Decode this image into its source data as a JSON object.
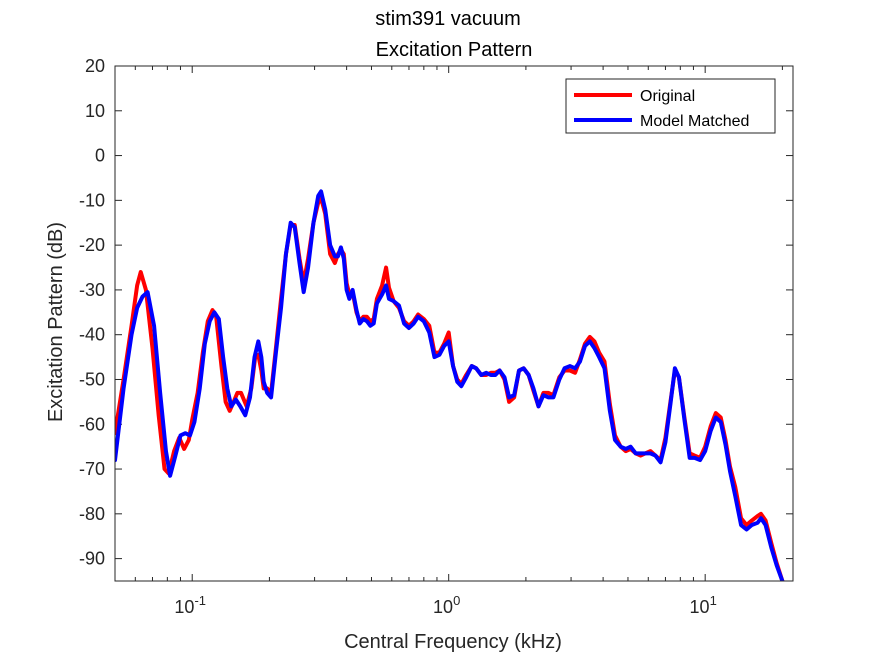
{
  "chart_data": {
    "type": "line",
    "title": "stim391 vacuum",
    "subtitle": "Excitation Pattern",
    "xlabel": "Central Frequency (kHz)",
    "ylabel": "Excitation Pattern (dB)",
    "xscale": "log",
    "xlim": [
      0.05,
      22
    ],
    "ylim": [
      -95,
      20
    ],
    "y_ticks": [
      20,
      10,
      0,
      -10,
      -20,
      -30,
      -40,
      -50,
      -60,
      -70,
      -80,
      -90
    ],
    "y_tick_labels": [
      "20",
      "10",
      "0",
      "-10",
      "-20",
      "-30",
      "-40",
      "-50",
      "-60",
      "-70",
      "-80",
      "-90"
    ],
    "x_ticks": [
      0.1,
      1,
      10
    ],
    "x_tick_base": "10",
    "x_tick_exponents": [
      "-1",
      "0",
      "1"
    ],
    "grid": false,
    "legend_position": "top-right",
    "series": [
      {
        "name": "Original",
        "color": "#ff0000",
        "points": [
          [
            0.05,
            -62
          ],
          [
            0.054,
            -50
          ],
          [
            0.058,
            -38
          ],
          [
            0.061,
            -29
          ],
          [
            0.063,
            -26
          ],
          [
            0.066,
            -30
          ],
          [
            0.07,
            -43
          ],
          [
            0.074,
            -58
          ],
          [
            0.078,
            -70
          ],
          [
            0.081,
            -71
          ],
          [
            0.085,
            -66
          ],
          [
            0.089,
            -63
          ],
          [
            0.093,
            -65.5
          ],
          [
            0.097,
            -63.5
          ],
          [
            0.1,
            -59
          ],
          [
            0.105,
            -53
          ],
          [
            0.11,
            -44
          ],
          [
            0.115,
            -37
          ],
          [
            0.12,
            -34.5
          ],
          [
            0.124,
            -36
          ],
          [
            0.13,
            -47
          ],
          [
            0.135,
            -55
          ],
          [
            0.14,
            -57
          ],
          [
            0.145,
            -55
          ],
          [
            0.15,
            -53
          ],
          [
            0.155,
            -53
          ],
          [
            0.163,
            -56
          ],
          [
            0.17,
            -52
          ],
          [
            0.176,
            -45
          ],
          [
            0.181,
            -44.5
          ],
          [
            0.186,
            -48
          ],
          [
            0.19,
            -52
          ],
          [
            0.196,
            -52
          ],
          [
            0.203,
            -53
          ],
          [
            0.212,
            -43
          ],
          [
            0.222,
            -32
          ],
          [
            0.232,
            -22
          ],
          [
            0.242,
            -15.5
          ],
          [
            0.251,
            -15.5
          ],
          [
            0.262,
            -23
          ],
          [
            0.272,
            -28.5
          ],
          [
            0.283,
            -23
          ],
          [
            0.297,
            -15
          ],
          [
            0.31,
            -10.5
          ],
          [
            0.318,
            -9.5
          ],
          [
            0.33,
            -13
          ],
          [
            0.345,
            -22
          ],
          [
            0.36,
            -24
          ],
          [
            0.37,
            -22
          ],
          [
            0.38,
            -21
          ],
          [
            0.39,
            -22
          ],
          [
            0.4,
            -28.5
          ],
          [
            0.41,
            -31
          ],
          [
            0.422,
            -30.5
          ],
          [
            0.437,
            -35
          ],
          [
            0.45,
            -37
          ],
          [
            0.465,
            -36
          ],
          [
            0.48,
            -36
          ],
          [
            0.495,
            -37
          ],
          [
            0.51,
            -36.5
          ],
          [
            0.525,
            -32
          ],
          [
            0.55,
            -29
          ],
          [
            0.57,
            -25
          ],
          [
            0.585,
            -29.5
          ],
          [
            0.61,
            -32.5
          ],
          [
            0.64,
            -34
          ],
          [
            0.67,
            -37
          ],
          [
            0.7,
            -38
          ],
          [
            0.73,
            -37
          ],
          [
            0.76,
            -35.5
          ],
          [
            0.8,
            -36.5
          ],
          [
            0.84,
            -38
          ],
          [
            0.88,
            -44
          ],
          [
            0.92,
            -44
          ],
          [
            0.96,
            -42
          ],
          [
            1.0,
            -39.5
          ],
          [
            1.04,
            -47
          ],
          [
            1.08,
            -50
          ],
          [
            1.12,
            -51
          ],
          [
            1.17,
            -49
          ],
          [
            1.23,
            -47
          ],
          [
            1.28,
            -47.5
          ],
          [
            1.34,
            -49
          ],
          [
            1.4,
            -49
          ],
          [
            1.46,
            -48.5
          ],
          [
            1.52,
            -48.5
          ],
          [
            1.58,
            -48
          ],
          [
            1.65,
            -50
          ],
          [
            1.72,
            -55
          ],
          [
            1.8,
            -54
          ],
          [
            1.88,
            -48
          ],
          [
            1.96,
            -47.5
          ],
          [
            2.05,
            -49
          ],
          [
            2.14,
            -52.5
          ],
          [
            2.24,
            -56
          ],
          [
            2.34,
            -53
          ],
          [
            2.45,
            -53
          ],
          [
            2.56,
            -53.5
          ],
          [
            2.7,
            -49.5
          ],
          [
            2.83,
            -48
          ],
          [
            2.97,
            -48
          ],
          [
            3.11,
            -48.5
          ],
          [
            3.25,
            -45.5
          ],
          [
            3.4,
            -42
          ],
          [
            3.55,
            -40.5
          ],
          [
            3.7,
            -41.5
          ],
          [
            3.86,
            -44
          ],
          [
            4.05,
            -46
          ],
          [
            4.25,
            -55.5
          ],
          [
            4.45,
            -62.5
          ],
          [
            4.68,
            -65
          ],
          [
            4.9,
            -66
          ],
          [
            5.12,
            -65.5
          ],
          [
            5.36,
            -66.5
          ],
          [
            5.6,
            -67
          ],
          [
            5.85,
            -66.5
          ],
          [
            6.12,
            -66
          ],
          [
            6.4,
            -67
          ],
          [
            6.7,
            -68
          ],
          [
            7.0,
            -63
          ],
          [
            7.32,
            -55
          ],
          [
            7.62,
            -48
          ],
          [
            7.9,
            -49.5
          ],
          [
            8.3,
            -58.5
          ],
          [
            8.7,
            -66.5
          ],
          [
            9.1,
            -67
          ],
          [
            9.55,
            -67.5
          ],
          [
            10.0,
            -65
          ],
          [
            10.5,
            -60.5
          ],
          [
            11.0,
            -57.5
          ],
          [
            11.5,
            -58.5
          ],
          [
            12.0,
            -63.5
          ],
          [
            12.5,
            -69.5
          ],
          [
            13.1,
            -74
          ],
          [
            13.8,
            -81
          ],
          [
            14.5,
            -82.5
          ],
          [
            15.2,
            -81.5
          ],
          [
            16.0,
            -80.5
          ],
          [
            16.5,
            -80
          ],
          [
            17.2,
            -81.5
          ],
          [
            18.1,
            -86.5
          ],
          [
            19.0,
            -91
          ],
          [
            20.0,
            -95
          ]
        ]
      },
      {
        "name": "Model Matched",
        "color": "#0000ff",
        "points": [
          [
            0.05,
            -68
          ],
          [
            0.054,
            -52
          ],
          [
            0.058,
            -40
          ],
          [
            0.061,
            -34
          ],
          [
            0.064,
            -31.5
          ],
          [
            0.067,
            -30.5
          ],
          [
            0.071,
            -38
          ],
          [
            0.075,
            -53
          ],
          [
            0.079,
            -66
          ],
          [
            0.082,
            -71.5
          ],
          [
            0.086,
            -67
          ],
          [
            0.09,
            -62.5
          ],
          [
            0.094,
            -62
          ],
          [
            0.098,
            -62.5
          ],
          [
            0.102,
            -59.5
          ],
          [
            0.107,
            -52
          ],
          [
            0.112,
            -42
          ],
          [
            0.117,
            -37
          ],
          [
            0.122,
            -35
          ],
          [
            0.127,
            -36.5
          ],
          [
            0.132,
            -45
          ],
          [
            0.137,
            -52
          ],
          [
            0.142,
            -56
          ],
          [
            0.148,
            -54.5
          ],
          [
            0.154,
            -56
          ],
          [
            0.161,
            -58
          ],
          [
            0.168,
            -54
          ],
          [
            0.175,
            -45
          ],
          [
            0.181,
            -41.5
          ],
          [
            0.186,
            -45
          ],
          [
            0.19,
            -50.5
          ],
          [
            0.196,
            -53
          ],
          [
            0.203,
            -54
          ],
          [
            0.212,
            -44
          ],
          [
            0.222,
            -34
          ],
          [
            0.232,
            -22
          ],
          [
            0.242,
            -15
          ],
          [
            0.251,
            -16
          ],
          [
            0.262,
            -24
          ],
          [
            0.272,
            -30.5
          ],
          [
            0.283,
            -25
          ],
          [
            0.297,
            -15
          ],
          [
            0.31,
            -9
          ],
          [
            0.318,
            -8
          ],
          [
            0.33,
            -12
          ],
          [
            0.345,
            -20
          ],
          [
            0.36,
            -22.5
          ],
          [
            0.37,
            -22.5
          ],
          [
            0.38,
            -20.5
          ],
          [
            0.39,
            -23
          ],
          [
            0.4,
            -30
          ],
          [
            0.41,
            -32
          ],
          [
            0.422,
            -30
          ],
          [
            0.437,
            -34.5
          ],
          [
            0.45,
            -37.5
          ],
          [
            0.465,
            -36.5
          ],
          [
            0.48,
            -37
          ],
          [
            0.495,
            -38
          ],
          [
            0.51,
            -37.5
          ],
          [
            0.525,
            -33
          ],
          [
            0.55,
            -31
          ],
          [
            0.57,
            -29
          ],
          [
            0.585,
            -32
          ],
          [
            0.61,
            -32.5
          ],
          [
            0.64,
            -33.5
          ],
          [
            0.67,
            -37.5
          ],
          [
            0.7,
            -38.5
          ],
          [
            0.73,
            -37.5
          ],
          [
            0.76,
            -36
          ],
          [
            0.8,
            -37
          ],
          [
            0.84,
            -39.5
          ],
          [
            0.88,
            -45
          ],
          [
            0.92,
            -44.5
          ],
          [
            0.96,
            -42.5
          ],
          [
            1.0,
            -41.5
          ],
          [
            1.04,
            -47
          ],
          [
            1.08,
            -50.5
          ],
          [
            1.12,
            -51.5
          ],
          [
            1.17,
            -49.5
          ],
          [
            1.23,
            -47
          ],
          [
            1.28,
            -47.5
          ],
          [
            1.34,
            -49
          ],
          [
            1.4,
            -48.5
          ],
          [
            1.46,
            -49
          ],
          [
            1.52,
            -49
          ],
          [
            1.58,
            -48
          ],
          [
            1.65,
            -49.5
          ],
          [
            1.72,
            -54
          ],
          [
            1.8,
            -53.5
          ],
          [
            1.88,
            -48
          ],
          [
            1.96,
            -47.5
          ],
          [
            2.05,
            -49
          ],
          [
            2.14,
            -52
          ],
          [
            2.24,
            -56
          ],
          [
            2.34,
            -53.5
          ],
          [
            2.45,
            -54
          ],
          [
            2.56,
            -54
          ],
          [
            2.7,
            -50
          ],
          [
            2.83,
            -47.5
          ],
          [
            2.97,
            -47
          ],
          [
            3.11,
            -47.5
          ],
          [
            3.25,
            -46
          ],
          [
            3.4,
            -42.5
          ],
          [
            3.55,
            -41.5
          ],
          [
            3.7,
            -43
          ],
          [
            3.86,
            -45
          ],
          [
            4.05,
            -47.5
          ],
          [
            4.25,
            -57
          ],
          [
            4.45,
            -63.5
          ],
          [
            4.68,
            -65
          ],
          [
            4.9,
            -65.5
          ],
          [
            5.12,
            -65
          ],
          [
            5.36,
            -66.5
          ],
          [
            5.6,
            -66.5
          ],
          [
            5.85,
            -66.5
          ],
          [
            6.12,
            -66.5
          ],
          [
            6.4,
            -67
          ],
          [
            6.7,
            -68.5
          ],
          [
            7.0,
            -64
          ],
          [
            7.32,
            -55.5
          ],
          [
            7.62,
            -47.5
          ],
          [
            7.9,
            -49.5
          ],
          [
            8.3,
            -59
          ],
          [
            8.7,
            -67.5
          ],
          [
            9.1,
            -67.5
          ],
          [
            9.55,
            -68
          ],
          [
            10.0,
            -66
          ],
          [
            10.5,
            -61.5
          ],
          [
            11.0,
            -58.5
          ],
          [
            11.5,
            -59.5
          ],
          [
            12.0,
            -64.5
          ],
          [
            12.5,
            -70.5
          ],
          [
            13.1,
            -76
          ],
          [
            13.8,
            -82.5
          ],
          [
            14.5,
            -83.5
          ],
          [
            15.2,
            -82.5
          ],
          [
            16.0,
            -82
          ],
          [
            16.5,
            -81
          ],
          [
            17.2,
            -82.5
          ],
          [
            18.1,
            -87.5
          ],
          [
            19.0,
            -91.5
          ],
          [
            20.0,
            -95
          ]
        ]
      }
    ]
  }
}
